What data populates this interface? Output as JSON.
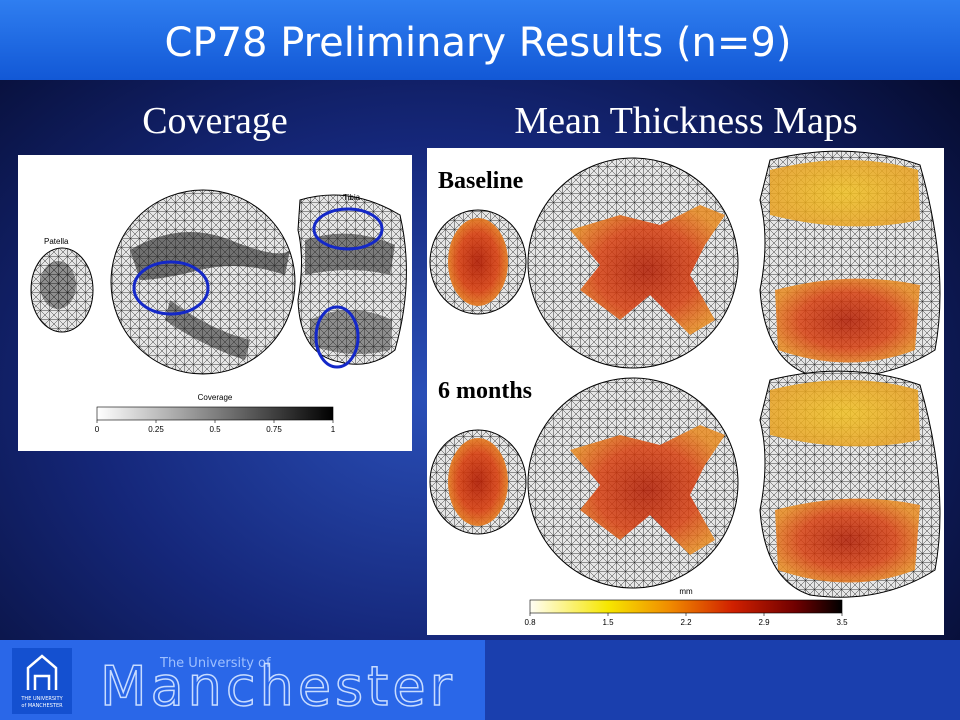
{
  "header": {
    "title": "CP78 Preliminary Results (n=9)"
  },
  "panels": {
    "coverage": {
      "heading": "Coverage",
      "labels": {
        "patella": "Patella",
        "tibia": "Tibia"
      },
      "colorbar": {
        "title": "Coverage",
        "ticks": [
          "0",
          "0.25",
          "0.5",
          "0.75",
          "1"
        ]
      }
    },
    "thickness": {
      "heading": "Mean Thickness Maps",
      "rows": [
        "Baseline",
        "6 months"
      ],
      "colorbar": {
        "unit": "mm",
        "ticks": [
          "0.8",
          "1.5",
          "2.2",
          "2.9",
          "3.5"
        ]
      }
    }
  },
  "footer": {
    "logo_text": [
      "THE UNIVERSITY",
      "of MANCHESTER"
    ],
    "tagline": "The University of",
    "name": "Manchester"
  }
}
